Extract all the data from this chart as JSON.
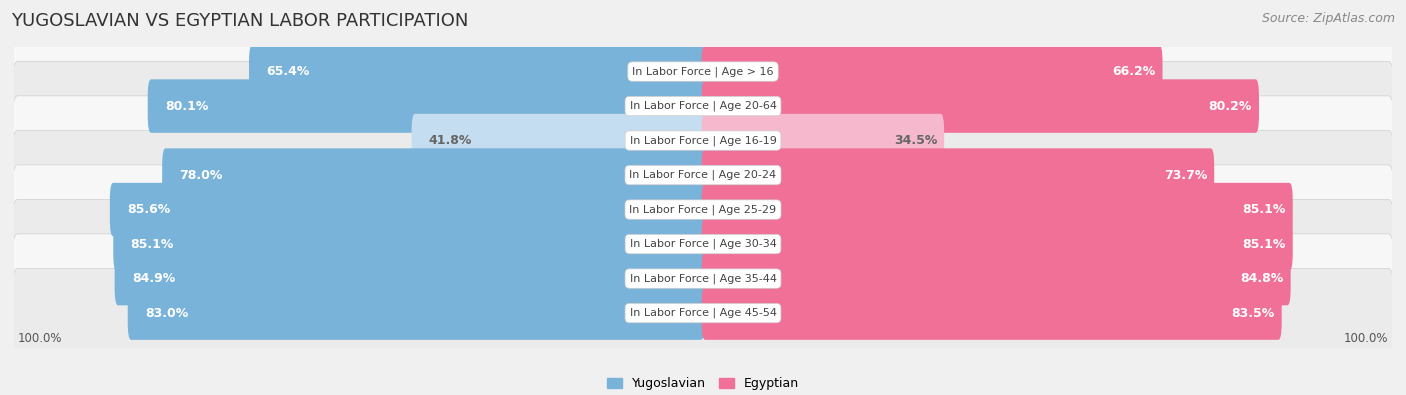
{
  "title": "YUGOSLAVIAN VS EGYPTIAN LABOR PARTICIPATION",
  "source": "Source: ZipAtlas.com",
  "categories": [
    "In Labor Force | Age > 16",
    "In Labor Force | Age 20-64",
    "In Labor Force | Age 16-19",
    "In Labor Force | Age 20-24",
    "In Labor Force | Age 25-29",
    "In Labor Force | Age 30-34",
    "In Labor Force | Age 35-44",
    "In Labor Force | Age 45-54"
  ],
  "yugoslav_values": [
    65.4,
    80.1,
    41.8,
    78.0,
    85.6,
    85.1,
    84.9,
    83.0
  ],
  "egyptian_values": [
    66.2,
    80.2,
    34.5,
    73.7,
    85.1,
    85.1,
    84.8,
    83.5
  ],
  "yugoslav_color": "#7ab3d9",
  "yugoslav_color_light": "#c5ddf0",
  "egyptian_color": "#f07098",
  "egyptian_color_light": "#f5b8cc",
  "label_color_white": "#ffffff",
  "label_color_dark": "#666666",
  "bg_color": "#f0f0f0",
  "row_bg_even": "#f7f7f7",
  "row_bg_odd": "#ebebeb",
  "separator_color": "#d0d0d0",
  "title_color": "#333333",
  "source_color": "#888888",
  "category_text_color": "#444444",
  "title_fontsize": 13,
  "source_fontsize": 9,
  "bar_label_fontsize": 9,
  "category_fontsize": 8,
  "legend_fontsize": 9,
  "axis_label_fontsize": 8.5,
  "x_max": 100.0,
  "threshold_light": 50.0
}
